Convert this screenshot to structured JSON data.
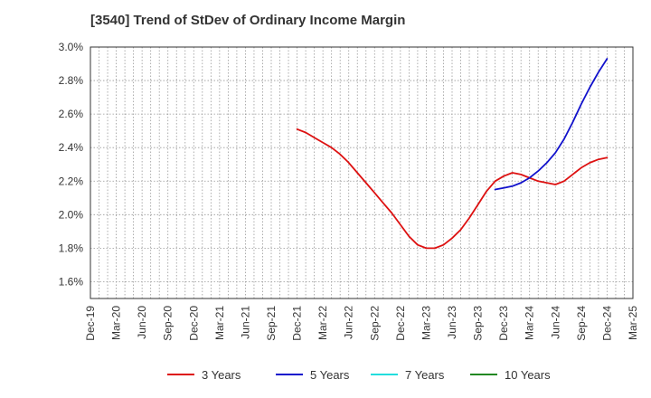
{
  "chart_data": {
    "type": "line",
    "title": "[3540]  Trend of StDev of Ordinary Income Margin",
    "xlabel": "",
    "ylabel": "",
    "x_ticks": [
      "Dec-19",
      "Mar-20",
      "Jun-20",
      "Sep-20",
      "Dec-20",
      "Mar-21",
      "Jun-21",
      "Sep-21",
      "Dec-21",
      "Mar-22",
      "Jun-22",
      "Sep-22",
      "Dec-22",
      "Mar-23",
      "Jun-23",
      "Sep-23",
      "Dec-23",
      "Mar-24",
      "Jun-24",
      "Sep-24",
      "Dec-24",
      "Mar-25"
    ],
    "y_ticks": [
      "1.6%",
      "1.8%",
      "2.0%",
      "2.2%",
      "2.4%",
      "2.6%",
      "2.8%",
      "3.0%"
    ],
    "ylim": [
      1.5,
      3.0
    ],
    "grid": true,
    "legend_position": "bottom",
    "series": [
      {
        "name": "3 Years",
        "color": "#dd1111",
        "points": [
          [
            "Dec-21",
            2.51
          ],
          [
            "Jan-22",
            2.49
          ],
          [
            "Feb-22",
            2.46
          ],
          [
            "Mar-22",
            2.43
          ],
          [
            "Apr-22",
            2.4
          ],
          [
            "May-22",
            2.36
          ],
          [
            "Jun-22",
            2.31
          ],
          [
            "Jul-22",
            2.25
          ],
          [
            "Aug-22",
            2.19
          ],
          [
            "Sep-22",
            2.13
          ],
          [
            "Oct-22",
            2.07
          ],
          [
            "Nov-22",
            2.01
          ],
          [
            "Dec-22",
            1.94
          ],
          [
            "Jan-23",
            1.87
          ],
          [
            "Feb-23",
            1.82
          ],
          [
            "Mar-23",
            1.8
          ],
          [
            "Apr-23",
            1.8
          ],
          [
            "May-23",
            1.82
          ],
          [
            "Jun-23",
            1.86
          ],
          [
            "Jul-23",
            1.91
          ],
          [
            "Aug-23",
            1.98
          ],
          [
            "Sep-23",
            2.06
          ],
          [
            "Oct-23",
            2.14
          ],
          [
            "Nov-23",
            2.2
          ],
          [
            "Dec-23",
            2.23
          ],
          [
            "Jan-24",
            2.25
          ],
          [
            "Feb-24",
            2.24
          ],
          [
            "Mar-24",
            2.22
          ],
          [
            "Apr-24",
            2.2
          ],
          [
            "May-24",
            2.19
          ],
          [
            "Jun-24",
            2.18
          ],
          [
            "Jul-24",
            2.2
          ],
          [
            "Aug-24",
            2.24
          ],
          [
            "Sep-24",
            2.28
          ],
          [
            "Oct-24",
            2.31
          ],
          [
            "Nov-24",
            2.33
          ],
          [
            "Dec-24",
            2.34
          ]
        ]
      },
      {
        "name": "5 Years",
        "color": "#1111cc",
        "points": [
          [
            "Nov-23",
            2.15
          ],
          [
            "Dec-23",
            2.16
          ],
          [
            "Jan-24",
            2.17
          ],
          [
            "Feb-24",
            2.19
          ],
          [
            "Mar-24",
            2.22
          ],
          [
            "Apr-24",
            2.26
          ],
          [
            "May-24",
            2.31
          ],
          [
            "Jun-24",
            2.37
          ],
          [
            "Jul-24",
            2.45
          ],
          [
            "Aug-24",
            2.55
          ],
          [
            "Sep-24",
            2.66
          ],
          [
            "Oct-24",
            2.76
          ],
          [
            "Nov-24",
            2.85
          ],
          [
            "Dec-24",
            2.93
          ]
        ]
      },
      {
        "name": "7 Years",
        "color": "#22dddd",
        "points": []
      },
      {
        "name": "10 Years",
        "color": "#228822",
        "points": []
      }
    ]
  }
}
